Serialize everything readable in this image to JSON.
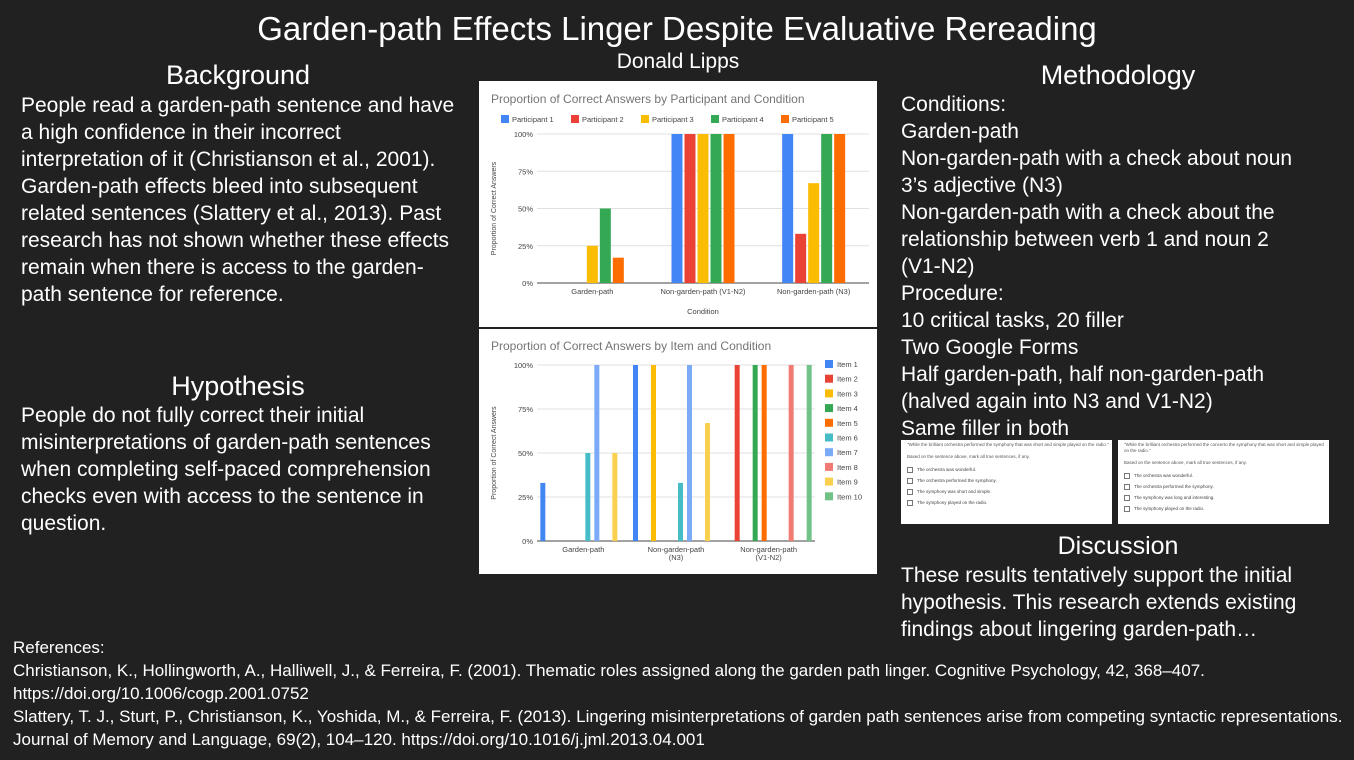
{
  "title": "Garden-path Effects Linger Despite Evaluative Rereading",
  "author": "Donald Lipps",
  "background": {
    "heading": "Background",
    "text": "People read a garden-path sentence and have a high confidence in their incorrect interpretation of it (Christianson et al., 2001). Garden-path effects bleed into subsequent related sentences (Slattery et al., 2013). Past research has not shown whether these effects remain when there is access to the garden-path sentence for reference."
  },
  "hypothesis": {
    "heading": "Hypothesis",
    "text": "People do not fully correct their initial misinterpretations of garden-path sentences when completing self-paced comprehension checks even with access to the sentence in question."
  },
  "methodology": {
    "heading": "Methodology",
    "lines": [
      "Conditions:",
      "Garden-path",
      "Non-garden-path with a check about noun",
      "3’s adjective (N3)",
      "Non-garden-path with a check about the",
      "relationship between verb 1 and noun 2",
      "(V1-N2)",
      "Procedure:",
      "10 critical tasks, 20 filler",
      "Two Google Forms",
      "Half garden-path, half non-garden-path",
      "(halved again into N3 and V1-N2)",
      "Same filler in both"
    ]
  },
  "forms": [
    {
      "question": "\"While the brilliant orchestra performed the symphony that was short and simple played on the radio.\"",
      "instruction": "Based on the sentence above, mark all true sentences, if any.",
      "options": [
        "The orchestra was wonderful.",
        "The orchestra performed the symphony.",
        "The symphony was short and simple.",
        "The symphony played on the radio."
      ]
    },
    {
      "question": "\"While the brilliant orchestra performed the concerto the symphony that was short and simple played on the radio.\"",
      "instruction": "Based on the sentence above, mark all true sentences, if any.",
      "options": [
        "The orchestra was wonderful.",
        "The orchestra performed the symphony.",
        "The symphony was long and interesting.",
        "The symphony played on the radio."
      ]
    }
  ],
  "discussion": {
    "heading": "Discussion",
    "text": "These results tentatively support the initial hypothesis. This research extends existing findings about lingering garden-path…"
  },
  "references": {
    "heading": "References:",
    "items": [
      "Christianson, K., Hollingworth, A., Halliwell, J., & Ferreira, F. (2001). Thematic roles assigned along the garden path linger. Cognitive Psychology, 42, 368–407. https://doi.org/10.1006/cogp.2001.0752",
      "Slattery, T. J., Sturt, P., Christianson, K., Yoshida, M., & Ferreira, F. (2013). Lingering misinterpretations of garden path sentences arise from competing syntactic representations. Journal of Memory and Language, 69(2), 104–120. https://doi.org/10.1016/j.jml.2013.04.001"
    ]
  },
  "chart_data": [
    {
      "type": "bar",
      "title": "Proportion of Correct Answers by Participant and Condition",
      "xlabel": "Condition",
      "ylabel": "Proportion of Correct Answers",
      "ylim": [
        0,
        1
      ],
      "yticks": [
        "0%",
        "25%",
        "50%",
        "75%",
        "100%"
      ],
      "legend_position": "top",
      "categories": [
        "Garden-path",
        "Non-garden-path (V1-N2)",
        "Non-garden-path (N3)"
      ],
      "series": [
        {
          "name": "Participant 1",
          "color": "#4285f4",
          "values": [
            0,
            1,
            1
          ]
        },
        {
          "name": "Participant 2",
          "color": "#ea4335",
          "values": [
            0,
            1,
            0.33
          ]
        },
        {
          "name": "Participant 3",
          "color": "#fbbc04",
          "values": [
            0.25,
            1,
            0.67
          ]
        },
        {
          "name": "Participant 4",
          "color": "#34a853",
          "values": [
            0.5,
            1,
            1
          ]
        },
        {
          "name": "Participant 5",
          "color": "#ff6d01",
          "values": [
            0.17,
            1,
            1
          ]
        }
      ]
    },
    {
      "type": "bar",
      "title": "Proportion of Correct Answers by Item and Condition",
      "xlabel": "",
      "ylabel": "Proportion of Correct Answers",
      "ylim": [
        0,
        1
      ],
      "yticks": [
        "0%",
        "25%",
        "50%",
        "75%",
        "100%"
      ],
      "legend_position": "right",
      "categories": [
        "Garden-path",
        "Non-garden-path (N3)",
        "Non-garden-path (V1-N2)"
      ],
      "series": [
        {
          "name": "Item 1",
          "color": "#4285f4",
          "values": [
            0.33,
            1,
            null
          ]
        },
        {
          "name": "Item 2",
          "color": "#ea4335",
          "values": [
            null,
            null,
            1
          ]
        },
        {
          "name": "Item 3",
          "color": "#fbbc04",
          "values": [
            null,
            1,
            null
          ]
        },
        {
          "name": "Item 4",
          "color": "#34a853",
          "values": [
            null,
            null,
            1
          ]
        },
        {
          "name": "Item 5",
          "color": "#ff6d01",
          "values": [
            null,
            null,
            1
          ]
        },
        {
          "name": "Item 6",
          "color": "#46bdc6",
          "values": [
            0.5,
            0.33,
            null
          ]
        },
        {
          "name": "Item 7",
          "color": "#7baaf7",
          "values": [
            1,
            1,
            null
          ]
        },
        {
          "name": "Item 8",
          "color": "#f07b72",
          "values": [
            null,
            null,
            1
          ]
        },
        {
          "name": "Item 9",
          "color": "#fcd04f",
          "values": [
            0.5,
            0.67,
            null
          ]
        },
        {
          "name": "Item 10",
          "color": "#71c287",
          "values": [
            null,
            null,
            1
          ]
        }
      ]
    }
  ]
}
